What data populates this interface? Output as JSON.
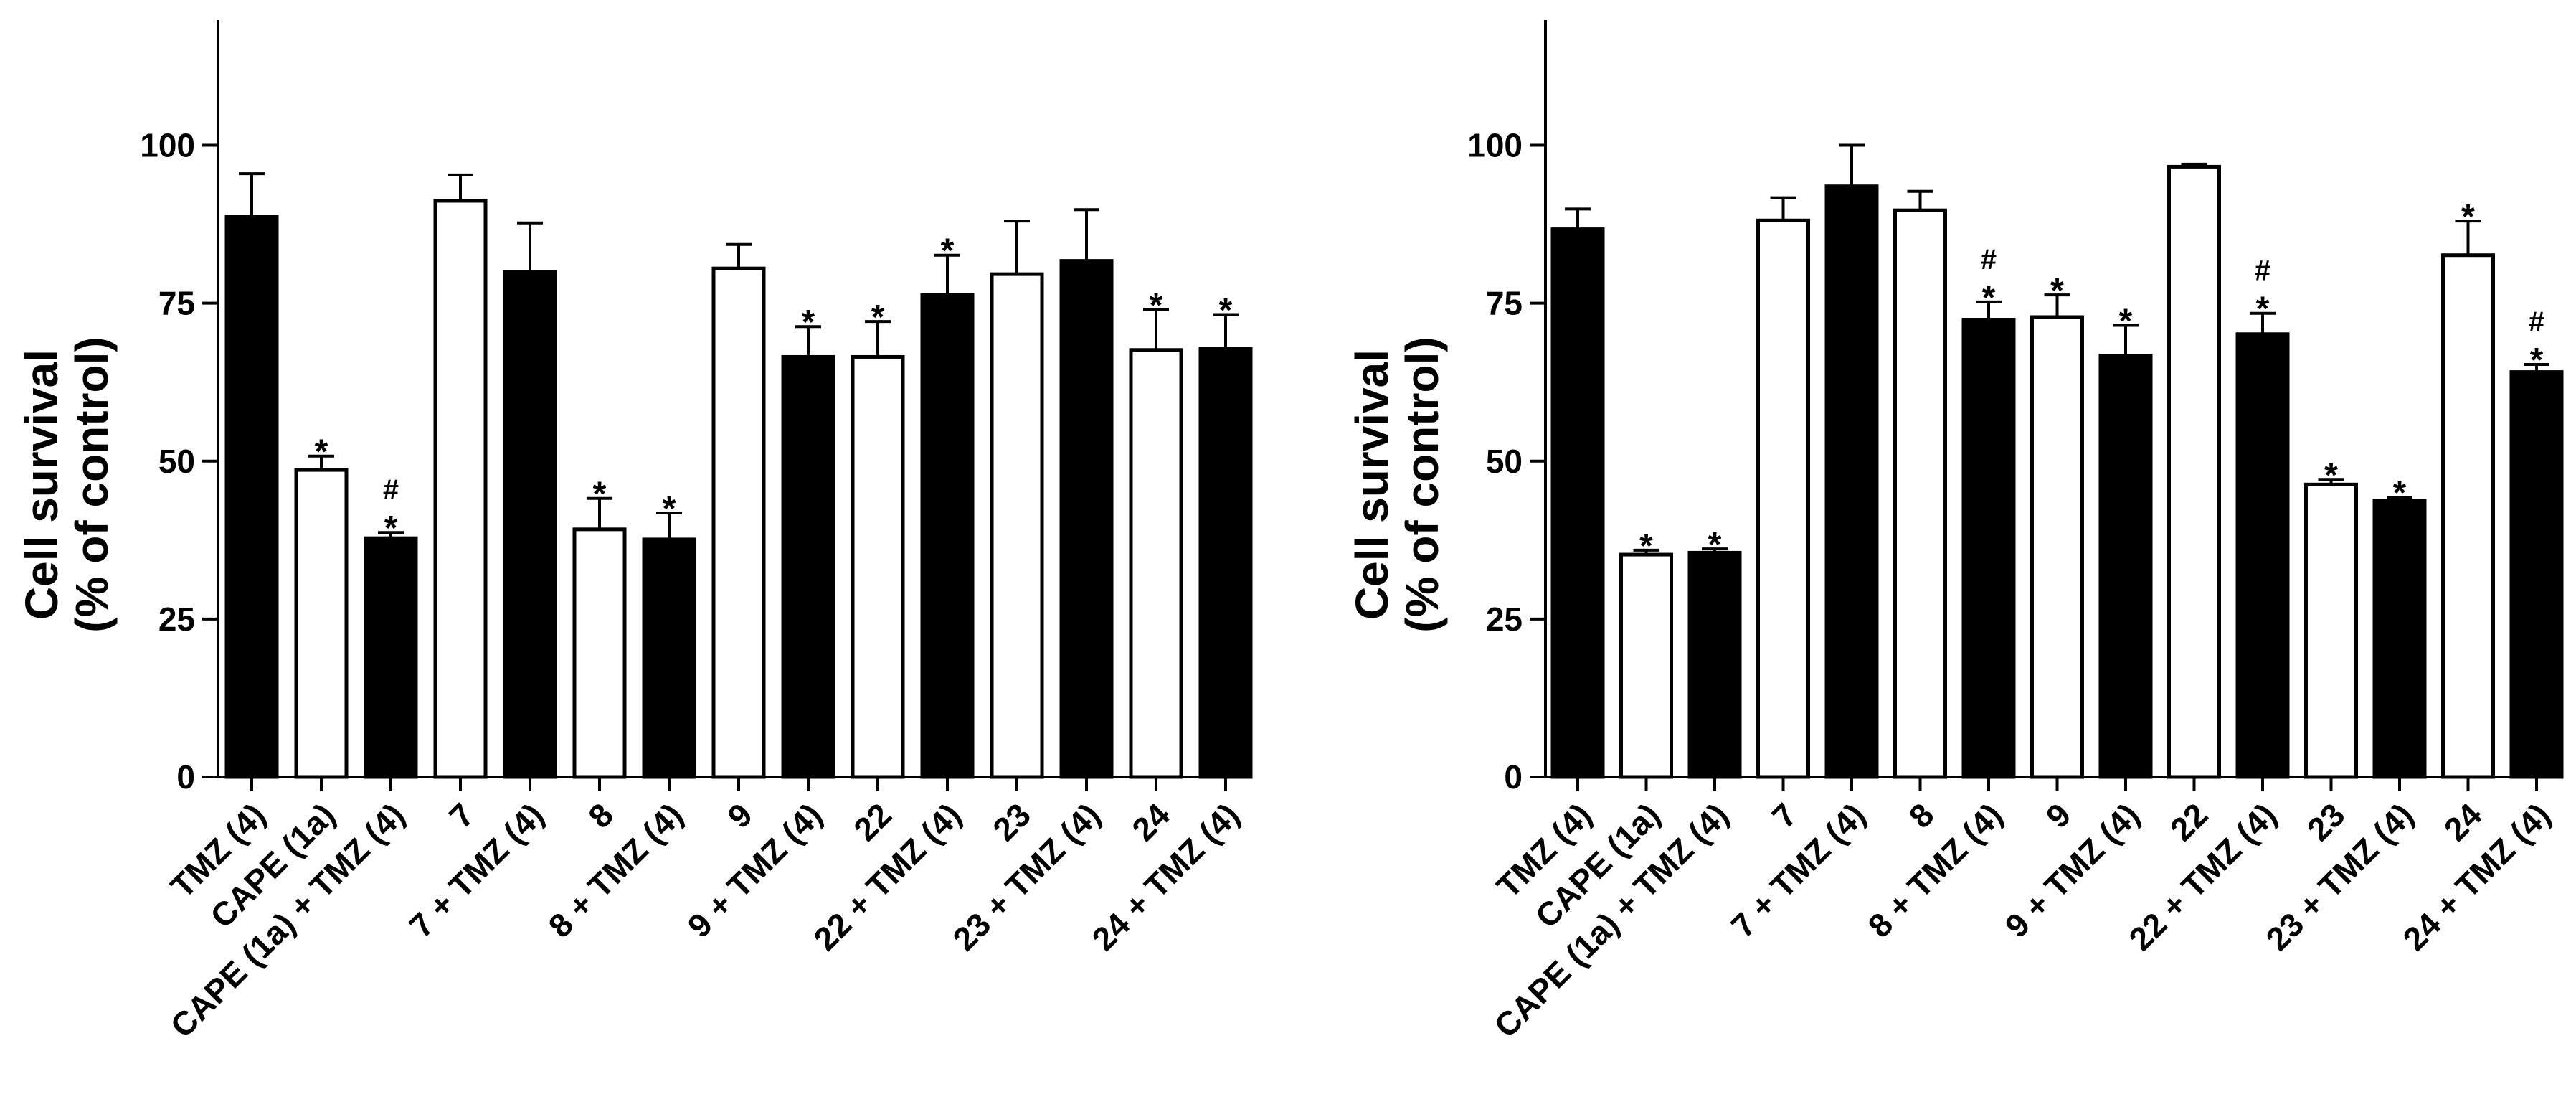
{
  "chart_data": [
    {
      "type": "bar",
      "ylabel_line1": "Cell survival",
      "ylabel_line2": "(% of control)",
      "ylim": [
        0,
        120
      ],
      "yticks": [
        "0",
        "25",
        "50",
        "75",
        "100"
      ],
      "categories": [
        "TMZ (4)",
        "CAPE (1a)",
        "CAPE (1a) + TMZ (4)",
        "7",
        "7 + TMZ (4)",
        "8",
        "8 + TMZ (4)",
        "9",
        "9 + TMZ (4)",
        "22",
        "22 + TMZ (4)",
        "23",
        "23 + TMZ (4)",
        "24",
        "24 + TMZ (4)"
      ],
      "values": [
        88.7,
        48.6,
        37.8,
        91.2,
        80.0,
        39.2,
        37.6,
        80.5,
        66.5,
        66.5,
        76.3,
        79.6,
        81.7,
        67.6,
        67.8
      ],
      "errors": [
        6.8,
        2.2,
        0.9,
        4.1,
        7.7,
        4.9,
        4.2,
        3.8,
        4.8,
        5.6,
        6.3,
        8.4,
        8.1,
        6.4,
        5.4
      ],
      "fills": [
        "black",
        "white",
        "black",
        "white",
        "black",
        "white",
        "black",
        "white",
        "black",
        "white",
        "black",
        "white",
        "black",
        "white",
        "black"
      ],
      "star_marks": [
        "",
        "*",
        "*",
        "",
        "",
        "*",
        "*",
        "",
        "*",
        "*",
        "*",
        "",
        "",
        "*",
        "*"
      ],
      "hash_marks": [
        "",
        "",
        "#",
        "",
        "",
        "",
        "",
        "",
        "",
        "",
        "",
        "",
        "",
        "",
        ""
      ]
    },
    {
      "type": "bar",
      "ylabel_line1": "Cell survival",
      "ylabel_line2": "(% of control)",
      "ylim": [
        0,
        120
      ],
      "yticks": [
        "0",
        "25",
        "50",
        "75",
        "100"
      ],
      "categories": [
        "TMZ (4)",
        "CAPE (1a)",
        "CAPE (1a) + TMZ (4)",
        "7",
        "7 + TMZ (4)",
        "8",
        "8 + TMZ (4)",
        "9",
        "9 + TMZ (4)",
        "22",
        "22 + TMZ (4)",
        "23",
        "23 + TMZ (4)",
        "24",
        "24 + TMZ (4)"
      ],
      "values": [
        86.7,
        35.2,
        35.5,
        88.1,
        93.5,
        89.7,
        72.4,
        72.8,
        66.7,
        96.6,
        70.1,
        46.3,
        43.7,
        82.6,
        64.1
      ],
      "errors": [
        3.2,
        0.7,
        0.6,
        3.6,
        6.5,
        3.0,
        2.8,
        3.5,
        4.8,
        0.4,
        3.3,
        0.8,
        0.6,
        5.4,
        1.2
      ],
      "fills": [
        "black",
        "white",
        "black",
        "white",
        "black",
        "white",
        "black",
        "white",
        "black",
        "white",
        "black",
        "white",
        "black",
        "white",
        "black"
      ],
      "star_marks": [
        "",
        "*",
        "*",
        "",
        "",
        "",
        "*",
        "*",
        "*",
        "",
        "*",
        "*",
        "*",
        "*",
        "*"
      ],
      "hash_marks": [
        "",
        "",
        "",
        "",
        "",
        "",
        "#",
        "",
        "",
        "",
        "#",
        "",
        "",
        "",
        "#"
      ]
    }
  ]
}
